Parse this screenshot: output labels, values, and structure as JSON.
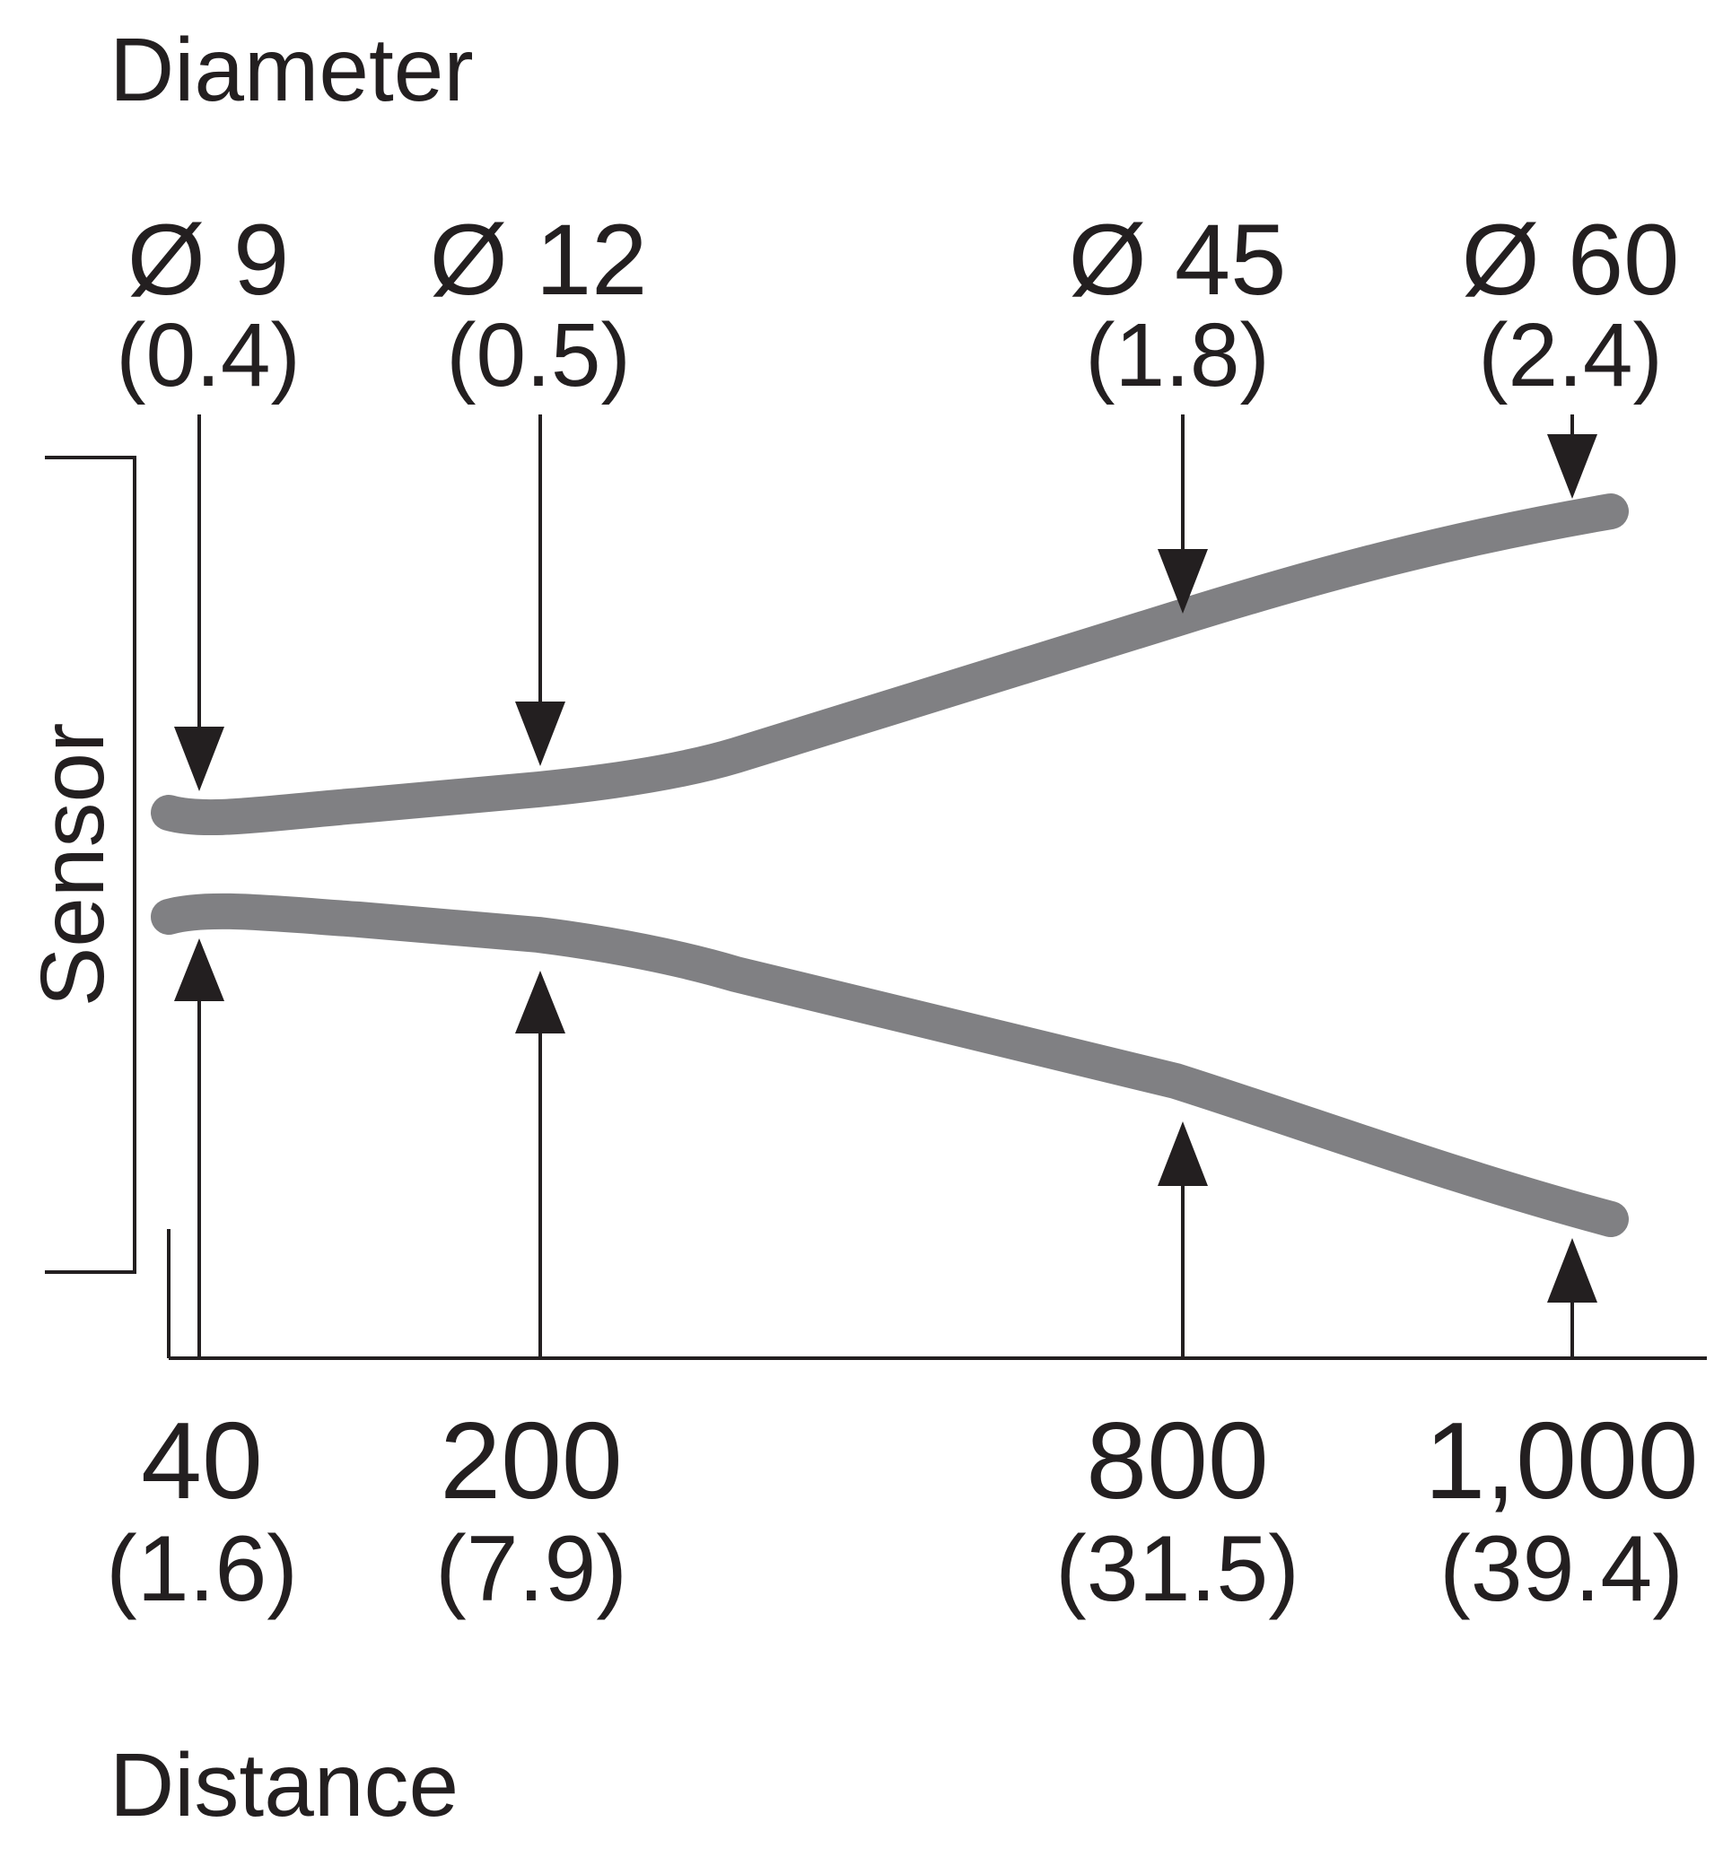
{
  "heading_diameter": "Diameter",
  "heading_distance": "Distance",
  "sensor_label": "Sensor",
  "colors": {
    "beam": "#808083",
    "ink": "#231f20"
  },
  "points": [
    {
      "diameter": "Ø 9",
      "diameter_in": "(0.4)",
      "distance": "40",
      "distance_in": "(1.6)"
    },
    {
      "diameter": "Ø 12",
      "diameter_in": "(0.5)",
      "distance": "200",
      "distance_in": "(7.9)"
    },
    {
      "diameter": "Ø 45",
      "diameter_in": "(1.8)",
      "distance": "800",
      "distance_in": "(31.5)"
    },
    {
      "diameter": "Ø 60",
      "diameter_in": "(2.4)",
      "distance": "1,000",
      "distance_in": "(39.4)"
    }
  ]
}
